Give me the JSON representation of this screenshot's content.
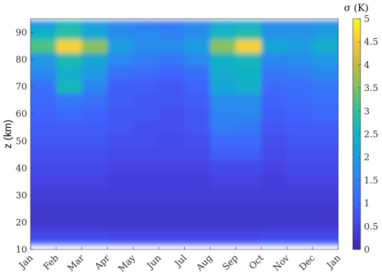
{
  "chart_data": {
    "type": "heatmap",
    "title": "",
    "xlabel": "",
    "ylabel": "z (km)",
    "x_ticks": [
      "Jan",
      "Feb",
      "Mar",
      "Apr",
      "May",
      "Jun",
      "Jul",
      "Aug",
      "Sep",
      "Oct",
      "Nov",
      "Dec",
      "Jan"
    ],
    "y_ticks": [
      10,
      20,
      30,
      40,
      50,
      60,
      70,
      80,
      90
    ],
    "ylim": [
      10,
      95
    ],
    "colorbar": {
      "label": "σ (K)",
      "ticks": [
        "0",
        "0.5",
        "1",
        "1.5",
        "2",
        "2.5",
        "3",
        "3.5",
        "4",
        "4.5",
        "5"
      ],
      "range": [
        0,
        5
      ],
      "colormap": "parula"
    },
    "grid": false,
    "z_columns_month": [
      0.5,
      1.5,
      2.5,
      3.5,
      4.5,
      5.5,
      6.5,
      7.5,
      8.5,
      9.5,
      10.5,
      11.5
    ],
    "z_rows_km": [
      12,
      15,
      20,
      25,
      30,
      35,
      40,
      45,
      50,
      55,
      60,
      65,
      70,
      75,
      80,
      85,
      90,
      94
    ],
    "z_values": [
      [
        0.9,
        0.9,
        0.9,
        0.8,
        0.8,
        0.8,
        0.8,
        0.8,
        0.8,
        0.9,
        0.9,
        0.9
      ],
      [
        0.6,
        0.6,
        0.6,
        0.5,
        0.5,
        0.5,
        0.5,
        0.5,
        0.5,
        0.6,
        0.6,
        0.6
      ],
      [
        0.3,
        0.3,
        0.3,
        0.3,
        0.3,
        0.3,
        0.3,
        0.3,
        0.3,
        0.3,
        0.3,
        0.3
      ],
      [
        0.3,
        0.3,
        0.3,
        0.3,
        0.3,
        0.3,
        0.3,
        0.3,
        0.3,
        0.3,
        0.3,
        0.3
      ],
      [
        0.4,
        0.4,
        0.4,
        0.4,
        0.4,
        0.4,
        0.4,
        0.4,
        0.4,
        0.4,
        0.4,
        0.4
      ],
      [
        0.5,
        0.5,
        0.5,
        0.4,
        0.4,
        0.4,
        0.4,
        0.5,
        0.5,
        0.4,
        0.5,
        0.5
      ],
      [
        0.6,
        0.6,
        0.6,
        0.5,
        0.5,
        0.5,
        0.5,
        0.6,
        0.6,
        0.5,
        0.6,
        0.6
      ],
      [
        0.7,
        0.7,
        0.7,
        0.6,
        0.6,
        0.6,
        0.6,
        0.9,
        0.9,
        0.6,
        0.7,
        0.7
      ],
      [
        0.8,
        0.8,
        0.8,
        0.7,
        0.7,
        0.6,
        0.7,
        1.1,
        1.1,
        0.7,
        0.8,
        0.8
      ],
      [
        0.9,
        0.9,
        0.9,
        0.8,
        0.7,
        0.7,
        0.8,
        1.4,
        1.3,
        0.8,
        0.9,
        0.9
      ],
      [
        1.0,
        1.1,
        1.0,
        0.8,
        0.8,
        0.7,
        0.8,
        1.5,
        1.6,
        0.9,
        1.0,
        1.1
      ],
      [
        1.1,
        1.3,
        1.2,
        0.9,
        0.8,
        0.8,
        0.9,
        1.7,
        1.7,
        1.0,
        1.1,
        1.2
      ],
      [
        1.2,
        2.6,
        1.6,
        0.9,
        0.9,
        0.8,
        1.0,
        2.2,
        2.4,
        1.1,
        1.2,
        1.3
      ],
      [
        1.6,
        2.4,
        1.9,
        1.2,
        1.1,
        1.0,
        1.2,
        2.3,
        2.5,
        1.3,
        1.4,
        1.6
      ],
      [
        1.9,
        2.7,
        2.2,
        1.6,
        1.4,
        1.3,
        1.6,
        2.5,
        2.6,
        1.6,
        1.7,
        1.9
      ],
      [
        3.2,
        4.6,
        3.6,
        2.0,
        1.7,
        1.7,
        2.0,
        3.6,
        4.6,
        2.2,
        2.0,
        2.4
      ],
      [
        2.5,
        2.9,
        2.2,
        1.7,
        1.6,
        1.5,
        1.7,
        2.6,
        2.8,
        1.8,
        1.8,
        2.0
      ],
      [
        1.8,
        2.6,
        2.0,
        1.5,
        1.4,
        1.3,
        1.5,
        2.2,
        2.3,
        1.6,
        1.6,
        1.8
      ]
    ]
  }
}
